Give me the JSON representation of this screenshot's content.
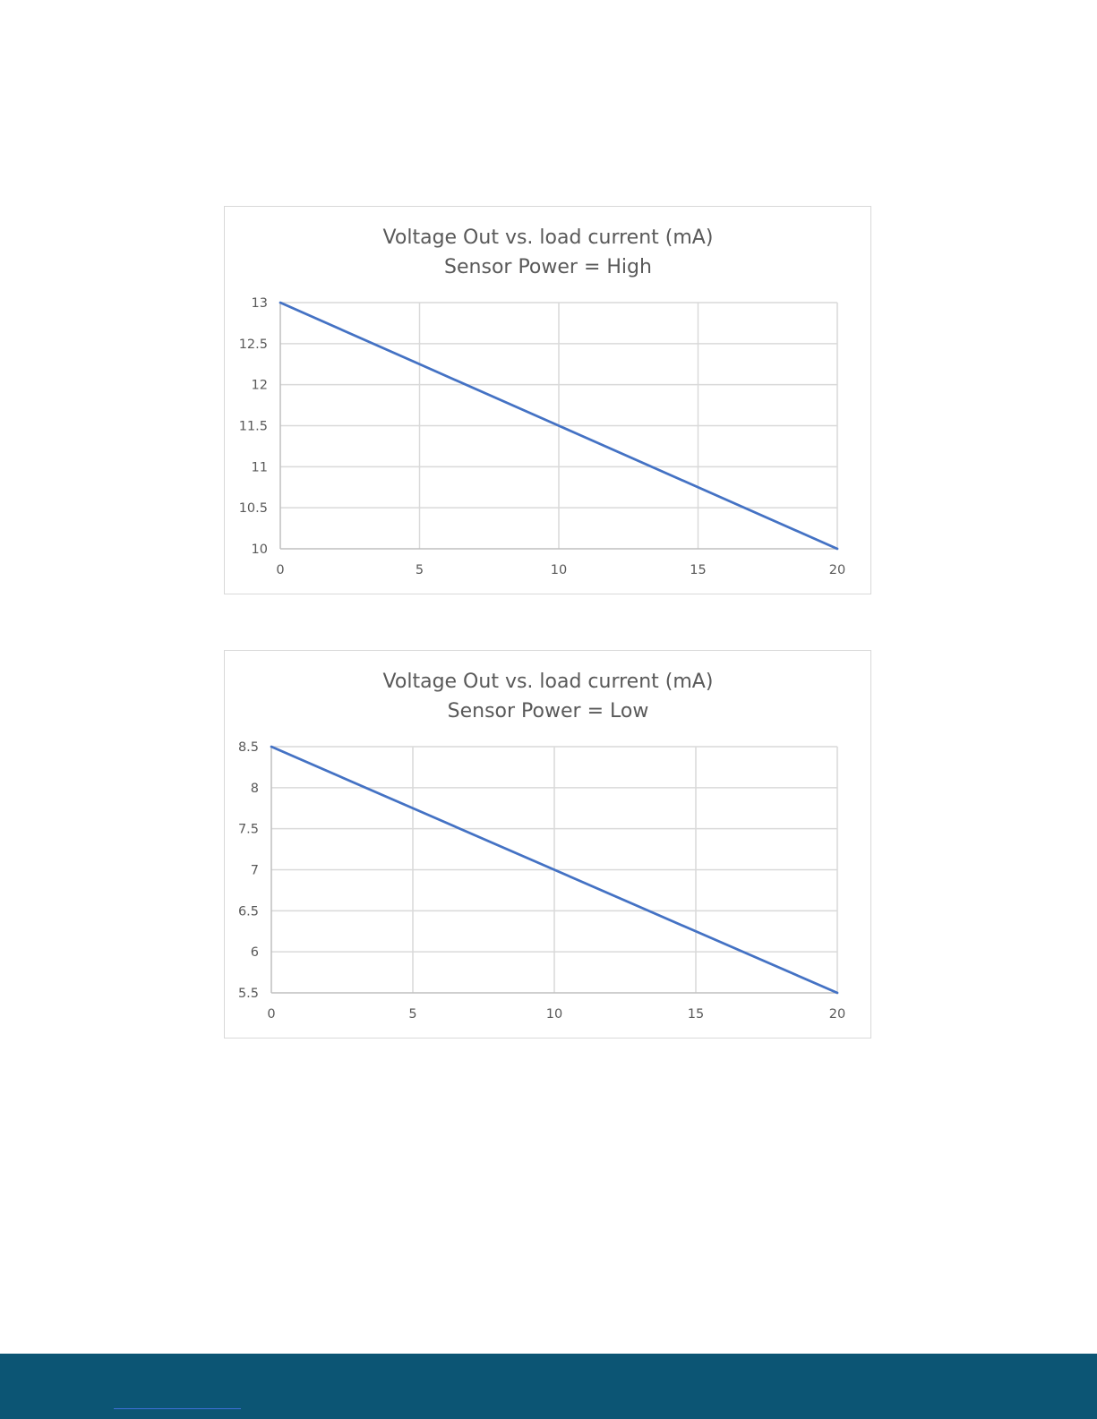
{
  "colors": {
    "series_line": "#4472c4",
    "gridline": "#d9d9d9",
    "axis_line": "#bfbfbf",
    "text": "#595959",
    "chart_border": "#d9d9d9",
    "footer_band": "#0c5574"
  },
  "chart_data": [
    {
      "type": "line",
      "title": "Voltage Out vs. load current (mA)",
      "subtitle": "Sensor Power = High",
      "xlabel": "",
      "ylabel": "",
      "xlim": [
        0,
        20
      ],
      "ylim": [
        10,
        13
      ],
      "x_ticks": [
        "0",
        "5",
        "10",
        "15",
        "20"
      ],
      "y_ticks": [
        "10",
        "10.5",
        "11",
        "11.5",
        "12",
        "12.5",
        "13"
      ],
      "grid": true,
      "legend": "none",
      "series": [
        {
          "x": [
            0,
            5,
            10,
            15,
            20
          ],
          "y": [
            13,
            12.25,
            11.5,
            10.75,
            10
          ]
        }
      ]
    },
    {
      "type": "line",
      "title": "Voltage Out vs. load current (mA)",
      "subtitle": "Sensor Power = Low",
      "xlabel": "",
      "ylabel": "",
      "xlim": [
        0,
        20
      ],
      "ylim": [
        5.5,
        8.5
      ],
      "x_ticks": [
        "0",
        "5",
        "10",
        "15",
        "20"
      ],
      "y_ticks": [
        "5.5",
        "6",
        "6.5",
        "7",
        "7.5",
        "8",
        "8.5"
      ],
      "grid": true,
      "legend": "none",
      "series": [
        {
          "x": [
            0,
            5,
            10,
            15,
            20
          ],
          "y": [
            8.5,
            7.75,
            7,
            6.25,
            5.5
          ]
        }
      ]
    }
  ]
}
